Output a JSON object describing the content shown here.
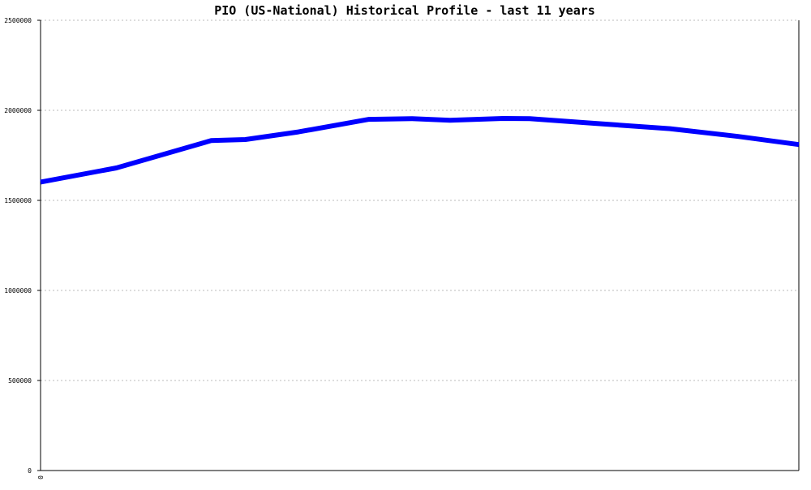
{
  "chart_data": {
    "type": "line",
    "title": "PIO (US-National) Historical Profile - last 11 years",
    "xlabel": "",
    "ylabel": "",
    "ylim": [
      0,
      2500000
    ],
    "yticks": [
      0,
      500000,
      1000000,
      1500000,
      2000000,
      2500000
    ],
    "ytick_labels": [
      "0",
      "500000",
      "1000000",
      "1500000",
      "2000000",
      "2500000"
    ],
    "xtick_labels": [
      "0"
    ],
    "grid": true,
    "series": [
      {
        "color": "#0000ff",
        "points": [
          [
            0.0,
            1602000
          ],
          [
            0.1,
            1680000
          ],
          [
            0.225,
            1832000
          ],
          [
            0.27,
            1838000
          ],
          [
            0.34,
            1880000
          ],
          [
            0.433,
            1950000
          ],
          [
            0.49,
            1954000
          ],
          [
            0.54,
            1945000
          ],
          [
            0.61,
            1955000
          ],
          [
            0.645,
            1954000
          ],
          [
            0.73,
            1928000
          ],
          [
            0.83,
            1898000
          ],
          [
            0.92,
            1855000
          ],
          [
            1.0,
            1810000
          ]
        ]
      }
    ]
  }
}
